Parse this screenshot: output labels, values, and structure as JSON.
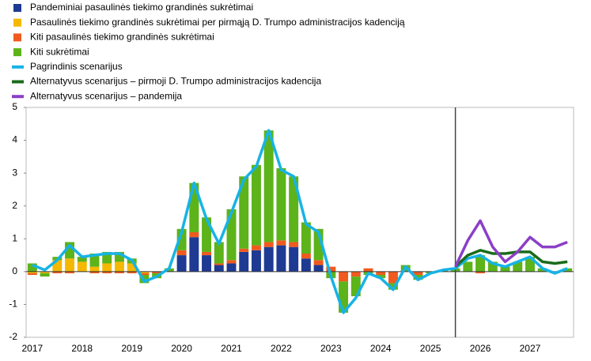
{
  "chart_data": {
    "type": "bar-line",
    "categories": [
      "2017",
      null,
      null,
      null,
      "2018",
      null,
      null,
      null,
      "2019",
      null,
      null,
      null,
      "2020",
      null,
      null,
      null,
      "2021",
      null,
      null,
      null,
      "2022",
      null,
      null,
      null,
      "2023",
      null,
      null,
      null,
      "2024",
      null,
      null,
      null,
      "2025",
      null,
      null,
      null,
      "2026",
      null,
      null,
      null,
      "2027",
      null,
      null,
      null
    ],
    "series": [
      {
        "name": "Pandeminiai pasaulinės tiekimo grandinės sukrėtimai",
        "kind": "bar",
        "color": "#1f3a93",
        "values": [
          0,
          0,
          0,
          0,
          0,
          0,
          0,
          0,
          0,
          0,
          0,
          0,
          0.5,
          1.05,
          0.5,
          0.2,
          0.25,
          0.6,
          0.65,
          0.75,
          0.8,
          0.75,
          0.4,
          0.2,
          0,
          0,
          0,
          0,
          0,
          0,
          0,
          0,
          0,
          0,
          0,
          0,
          0,
          0,
          0,
          0,
          0,
          0,
          0,
          0
        ]
      },
      {
        "name": "Pasaulinės tiekimo grandinės sukrėtimai per pirmąją D. Trumpo administracijos kadenciją",
        "kind": "bar",
        "color": "#f5b800",
        "values": [
          -0.05,
          -0.05,
          0.35,
          0.4,
          0.3,
          0.15,
          0.25,
          0.3,
          0.25,
          -0.05,
          0,
          0,
          0,
          0,
          0,
          0,
          0,
          0,
          0,
          0,
          0,
          0,
          0,
          0,
          0,
          0,
          0,
          0,
          0,
          0,
          0,
          0,
          0,
          0,
          0,
          0,
          0,
          0,
          0,
          0,
          0,
          0,
          0,
          0
        ]
      },
      {
        "name": "Kiti pasaulinės tiekimo grandinės sukrėtimai",
        "kind": "bar",
        "color": "#f05a1e",
        "values": [
          -0.05,
          0,
          -0.05,
          -0.05,
          0,
          -0.05,
          -0.05,
          -0.05,
          -0.05,
          -0.05,
          -0.05,
          0,
          0.15,
          0.15,
          0.1,
          0.05,
          0.1,
          0.1,
          0.15,
          0.15,
          0.15,
          0.15,
          0.15,
          0.15,
          0.15,
          -0.3,
          -0.15,
          0.1,
          -0.1,
          -0.35,
          0,
          -0.1,
          0,
          0,
          0,
          0,
          -0.05,
          0,
          0,
          0,
          0,
          0,
          0,
          0
        ]
      },
      {
        "name": "Kiti sukrėtimai",
        "kind": "bar",
        "color": "#5cb31a",
        "values": [
          0.25,
          -0.1,
          0.1,
          0.5,
          0.15,
          0.4,
          0.35,
          0.3,
          0.15,
          -0.25,
          -0.15,
          0.1,
          0.65,
          1.5,
          1.05,
          0.65,
          1.55,
          2.2,
          2.45,
          3.4,
          2.2,
          2.0,
          0.95,
          0.95,
          -0.2,
          -0.95,
          -0.6,
          -0.1,
          -0.1,
          -0.2,
          0.2,
          -0.15,
          -0.05,
          0.05,
          0.1,
          0.3,
          0.5,
          0.3,
          0.15,
          0.3,
          0.45,
          0.1,
          -0.05,
          0.1
        ]
      },
      {
        "name": "Pagrindinis scenarijus",
        "kind": "line",
        "color": "#17b3e6",
        "values": [
          0.2,
          0.05,
          0.35,
          0.8,
          0.45,
          0.5,
          0.55,
          0.55,
          0.35,
          -0.3,
          -0.15,
          0.1,
          1.2,
          2.7,
          1.6,
          0.85,
          1.8,
          2.8,
          3.2,
          4.3,
          3.1,
          2.9,
          1.45,
          1.2,
          -0.15,
          -1.25,
          -0.8,
          -0.05,
          -0.2,
          -0.55,
          0.15,
          -0.25,
          -0.05,
          0.05,
          0.1,
          0.4,
          0.5,
          0.25,
          0.15,
          0.3,
          0.45,
          0.1,
          -0.05,
          0.1
        ]
      },
      {
        "name": "Alternatyvus scenarijus – pirmoji D. Trumpo administracijos kadencija",
        "kind": "line",
        "color": "#1a6b1a",
        "values": [
          null,
          null,
          null,
          null,
          null,
          null,
          null,
          null,
          null,
          null,
          null,
          null,
          null,
          null,
          null,
          null,
          null,
          null,
          null,
          null,
          null,
          null,
          null,
          null,
          null,
          null,
          null,
          null,
          null,
          null,
          null,
          null,
          null,
          null,
          0.15,
          0.5,
          0.65,
          0.55,
          0.55,
          0.6,
          0.6,
          0.3,
          0.25,
          0.3
        ]
      },
      {
        "name": "Alternatyvus scenarijus – pandemija",
        "kind": "line",
        "color": "#8b3fc7",
        "values": [
          null,
          null,
          null,
          null,
          null,
          null,
          null,
          null,
          null,
          null,
          null,
          null,
          null,
          null,
          null,
          null,
          null,
          null,
          null,
          null,
          null,
          null,
          null,
          null,
          null,
          null,
          null,
          null,
          null,
          null,
          null,
          null,
          null,
          null,
          0.15,
          0.95,
          1.55,
          0.75,
          0.3,
          0.6,
          1.05,
          0.75,
          0.75,
          0.9
        ]
      }
    ],
    "vline_index": 34,
    "ylim": [
      -2,
      5
    ],
    "yticks": [
      -2,
      -1,
      0,
      1,
      2,
      3,
      4,
      5
    ]
  }
}
